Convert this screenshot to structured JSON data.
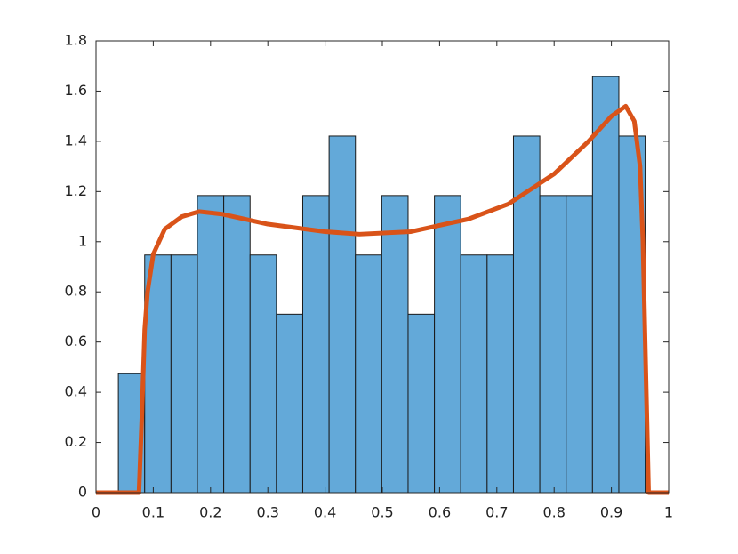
{
  "chart_data": {
    "type": "histogram",
    "bins": [
      0.039,
      0.085,
      0.131,
      0.177,
      0.223,
      0.269,
      0.315,
      0.361,
      0.407,
      0.453,
      0.499,
      0.545,
      0.591,
      0.637,
      0.683,
      0.729,
      0.775,
      0.821,
      0.867,
      0.913,
      0.959
    ],
    "values": [
      0.474,
      0.947,
      0.947,
      1.184,
      1.184,
      0.947,
      0.711,
      1.184,
      1.421,
      0.947,
      1.184,
      0.711,
      1.184,
      0.947,
      0.947,
      1.421,
      1.184,
      1.184,
      1.658,
      1.421
    ],
    "color": "#63a9d9",
    "curve": {
      "color": "#d95319",
      "x": [
        0,
        0.075,
        0.08,
        0.085,
        0.09,
        0.1,
        0.12,
        0.15,
        0.18,
        0.22,
        0.3,
        0.4,
        0.46,
        0.55,
        0.65,
        0.72,
        0.8,
        0.86,
        0.9,
        0.925,
        0.94,
        0.95,
        0.955,
        0.96,
        0.965,
        1
      ],
      "y": [
        0,
        0,
        0.3,
        0.65,
        0.8,
        0.95,
        1.05,
        1.1,
        1.12,
        1.11,
        1.07,
        1.04,
        1.03,
        1.04,
        1.09,
        1.15,
        1.27,
        1.4,
        1.5,
        1.54,
        1.48,
        1.3,
        1.0,
        0.5,
        0,
        0
      ]
    },
    "xlim": [
      0,
      1
    ],
    "xticks": [
      0,
      0.1,
      0.2,
      0.3,
      0.4,
      0.5,
      0.6,
      0.7,
      0.8,
      0.9,
      1
    ],
    "ylim": [
      0,
      1.8
    ],
    "yticks": [
      0,
      0.2,
      0.4,
      0.6,
      0.8,
      1,
      1.2,
      1.4,
      1.6,
      1.8
    ],
    "grid": false
  }
}
